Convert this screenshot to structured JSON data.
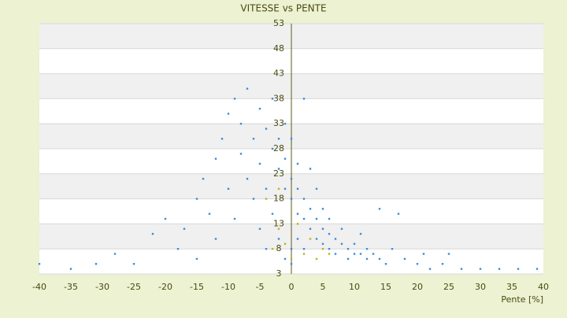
{
  "chart_data": {
    "type": "scatter",
    "title": "VITESSE vs PENTE",
    "x_label": "Pente [%]",
    "xlim": [
      -40,
      40
    ],
    "ylim": [
      3,
      53
    ],
    "xticks": [
      -40,
      -35,
      -30,
      -25,
      -20,
      -15,
      -10,
      -5,
      0,
      5,
      10,
      15,
      20,
      25,
      30,
      35,
      40
    ],
    "yticks": [
      3,
      8,
      13,
      18,
      23,
      28,
      33,
      38,
      43,
      48,
      53
    ],
    "grid": true,
    "series": [
      {
        "color": "#3a8ed8",
        "x": [
          -40,
          -35,
          -31,
          -28,
          -25,
          -22,
          -20,
          -18,
          -17,
          -15,
          -15,
          -14,
          -13,
          -12,
          -12,
          -11,
          -10,
          -10,
          -9,
          -9,
          -8,
          -8,
          -7,
          -7,
          -6,
          -6,
          -5,
          -5,
          -5,
          -4,
          -4,
          -4,
          -3,
          -3,
          -3,
          -2,
          -2,
          -2,
          -1,
          -1,
          -1,
          -1,
          0,
          0,
          0,
          0,
          0,
          1,
          1,
          1,
          1,
          2,
          2,
          2,
          2,
          3,
          3,
          3,
          4,
          4,
          4,
          5,
          5,
          5,
          6,
          6,
          6,
          7,
          7,
          8,
          8,
          9,
          9,
          10,
          10,
          11,
          11,
          12,
          12,
          13,
          14,
          14,
          15,
          16,
          17,
          18,
          20,
          21,
          22,
          24,
          25,
          27,
          30,
          33,
          36,
          39
        ],
        "values": [
          5,
          4,
          5,
          7,
          5,
          11,
          14,
          8,
          12,
          18,
          6,
          22,
          15,
          26,
          10,
          30,
          20,
          35,
          38,
          14,
          27,
          33,
          40,
          22,
          18,
          30,
          36,
          25,
          12,
          32,
          20,
          8,
          28,
          15,
          38,
          24,
          30,
          10,
          20,
          26,
          33,
          6,
          18,
          22,
          30,
          8,
          5,
          20,
          15,
          25,
          10,
          18,
          14,
          38,
          8,
          16,
          12,
          24,
          14,
          10,
          20,
          12,
          9,
          16,
          11,
          8,
          14,
          10,
          7,
          9,
          12,
          8,
          6,
          9,
          7,
          7,
          11,
          6,
          8,
          7,
          6,
          16,
          5,
          8,
          15,
          6,
          5,
          7,
          4,
          5,
          7,
          4,
          4,
          4,
          4,
          4
        ]
      },
      {
        "color": "#c2b21a",
        "x": [
          -3,
          -2,
          -1,
          0,
          1,
          2,
          3,
          4,
          5,
          -4,
          -2,
          6
        ],
        "values": [
          8,
          12,
          9,
          6,
          13,
          7,
          10,
          6,
          8,
          18,
          20,
          7
        ]
      }
    ]
  }
}
